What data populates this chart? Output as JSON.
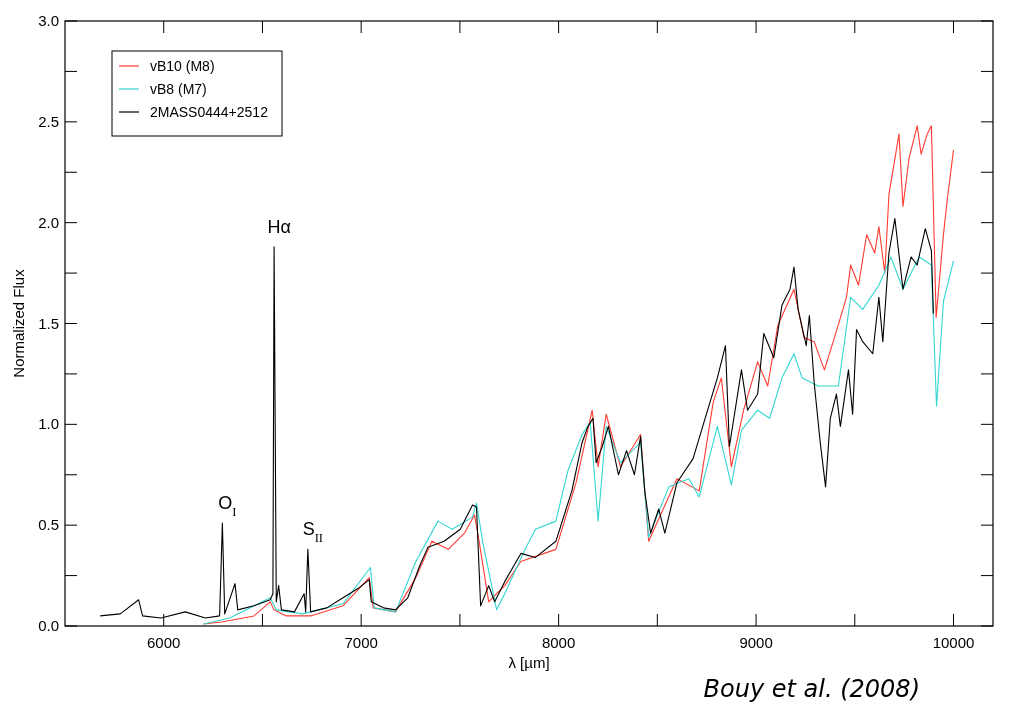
{
  "chart_data": {
    "type": "line",
    "xlabel": "λ [µm]",
    "ylabel": "Normalized Flux",
    "xlim": [
      5500,
      10200
    ],
    "ylim": [
      0,
      3
    ],
    "xticks": [
      {
        "value": 6000,
        "label": "6000"
      },
      {
        "value": 6500,
        "label": null
      },
      {
        "value": 7000,
        "label": "7000"
      },
      {
        "value": 7500,
        "label": null
      },
      {
        "value": 8000,
        "label": "8000"
      },
      {
        "value": 8500,
        "label": null
      },
      {
        "value": 9000,
        "label": "9000"
      },
      {
        "value": 9500,
        "label": null
      },
      {
        "value": 10000,
        "label": "10000"
      }
    ],
    "yticks": [
      {
        "value": 0,
        "label": "0.0"
      },
      {
        "value": 0.25,
        "label": null
      },
      {
        "value": 0.5,
        "label": "0.5"
      },
      {
        "value": 0.75,
        "label": null
      },
      {
        "value": 1,
        "label": "1.0"
      },
      {
        "value": 1.25,
        "label": null
      },
      {
        "value": 1.5,
        "label": "1.5"
      },
      {
        "value": 1.75,
        "label": null
      },
      {
        "value": 2,
        "label": "2.0"
      },
      {
        "value": 2.25,
        "label": null
      },
      {
        "value": 2.5,
        "label": "2.5"
      },
      {
        "value": 2.75,
        "label": null
      },
      {
        "value": 3,
        "label": "3.0"
      }
    ],
    "legend": "top left",
    "grid": false,
    "annotations": [
      {
        "text": "O$_{I}$",
        "x": 6297,
        "y": 0.51
      },
      {
        "text": "Hα",
        "x": 6559,
        "y": 1.88
      },
      {
        "text": "S$_{II}$",
        "x": 6730,
        "y": 0.38
      },
      "Bouy et al. (2008)"
    ],
    "series": [
      {
        "name": "vB10 (M8)",
        "color": "#ff3b30",
        "x": [
          6201,
          6293,
          6457,
          6539,
          6559,
          6621,
          6744,
          6908,
          7041,
          7061,
          7174,
          7277,
          7358,
          7441,
          7523,
          7574,
          7594,
          7646,
          7686,
          7727,
          7809,
          7986,
          8088,
          8170,
          8200,
          8241,
          8313,
          8415,
          8456,
          8599,
          8712,
          8783,
          8824,
          8875,
          8937,
          9008,
          9059,
          9110,
          9192,
          9243,
          9294,
          9346,
          9397,
          9458,
          9479,
          9519,
          9560,
          9601,
          9622,
          9652,
          9673,
          9724,
          9744,
          9775,
          9816,
          9836,
          9867,
          9888,
          9912,
          9949,
          9969,
          10000
        ],
        "values": [
          0.01,
          0.02,
          0.05,
          0.12,
          0.08,
          0.05,
          0.05,
          0.1,
          0.24,
          0.09,
          0.07,
          0.24,
          0.42,
          0.38,
          0.46,
          0.55,
          0.44,
          0.12,
          0.16,
          0.2,
          0.32,
          0.38,
          0.71,
          1.07,
          0.79,
          1.05,
          0.79,
          0.95,
          0.42,
          0.73,
          0.67,
          1.11,
          1.23,
          0.79,
          1.07,
          1.31,
          1.19,
          1.49,
          1.67,
          1.43,
          1.41,
          1.27,
          1.43,
          1.63,
          1.79,
          1.69,
          1.94,
          1.85,
          1.98,
          1.75,
          2.14,
          2.44,
          2.08,
          2.32,
          2.48,
          2.34,
          2.44,
          2.48,
          1.53,
          1.94,
          2.12,
          2.36
        ]
      },
      {
        "name": "vB8 (M7)",
        "color": "#33d6d0",
        "x": [
          6201,
          6334,
          6539,
          6570,
          6703,
          6908,
          7047,
          7066,
          7174,
          7277,
          7389,
          7461,
          7564,
          7584,
          7615,
          7686,
          7727,
          7830,
          7883,
          7986,
          8047,
          8119,
          8160,
          8200,
          8241,
          8313,
          8415,
          8456,
          8558,
          8660,
          8712,
          8804,
          8875,
          8926,
          9008,
          9069,
          9131,
          9192,
          9233,
          9315,
          9417,
          9479,
          9540,
          9622,
          9683,
          9744,
          9826,
          9888,
          9914,
          9949,
          10000
        ],
        "values": [
          0.01,
          0.04,
          0.14,
          0.08,
          0.06,
          0.11,
          0.29,
          0.09,
          0.07,
          0.32,
          0.52,
          0.48,
          0.54,
          0.61,
          0.42,
          0.08,
          0.16,
          0.38,
          0.48,
          0.52,
          0.77,
          0.95,
          1.01,
          0.52,
          0.99,
          0.81,
          0.91,
          0.44,
          0.69,
          0.73,
          0.64,
          0.99,
          0.7,
          0.97,
          1.07,
          1.03,
          1.23,
          1.35,
          1.23,
          1.19,
          1.19,
          1.63,
          1.57,
          1.69,
          1.83,
          1.67,
          1.83,
          1.79,
          1.09,
          1.61,
          1.81
        ]
      },
      {
        "name": "2MASS0444+2512",
        "color": "#000000",
        "x": [
          5678,
          5780,
          5873,
          5893,
          5986,
          6109,
          6211,
          6283,
          6297,
          6309,
          6361,
          6375,
          6457,
          6539,
          6553,
          6559,
          6570,
          6582,
          6596,
          6662,
          6711,
          6719,
          6730,
          6744,
          6826,
          6908,
          6990,
          7041,
          7051,
          7113,
          7174,
          7236,
          7297,
          7338,
          7420,
          7502,
          7564,
          7584,
          7605,
          7646,
          7676,
          7727,
          7809,
          7883,
          7986,
          8067,
          8119,
          8149,
          8174,
          8190,
          8221,
          8252,
          8303,
          8344,
          8384,
          8415,
          8436,
          8466,
          8507,
          8538,
          8599,
          8681,
          8742,
          8804,
          8845,
          8865,
          8926,
          8957,
          9008,
          9039,
          9090,
          9131,
          9172,
          9192,
          9213,
          9254,
          9270,
          9294,
          9325,
          9352,
          9376,
          9407,
          9427,
          9468,
          9489,
          9509,
          9540,
          9591,
          9622,
          9642,
          9673,
          9703,
          9744,
          9785,
          9816,
          9857,
          9888,
          9898
        ],
        "values": [
          0.05,
          0.06,
          0.13,
          0.05,
          0.04,
          0.07,
          0.04,
          0.05,
          0.51,
          0.06,
          0.21,
          0.08,
          0.1,
          0.13,
          0.16,
          1.88,
          0.12,
          0.2,
          0.08,
          0.07,
          0.16,
          0.07,
          0.38,
          0.07,
          0.09,
          0.14,
          0.19,
          0.23,
          0.12,
          0.09,
          0.08,
          0.14,
          0.3,
          0.39,
          0.42,
          0.48,
          0.6,
          0.59,
          0.1,
          0.2,
          0.12,
          0.22,
          0.36,
          0.34,
          0.42,
          0.67,
          0.91,
          0.99,
          1.03,
          0.81,
          0.89,
          0.99,
          0.75,
          0.87,
          0.75,
          0.94,
          0.67,
          0.46,
          0.58,
          0.46,
          0.71,
          0.83,
          1.03,
          1.23,
          1.39,
          0.89,
          1.27,
          1.07,
          1.15,
          1.45,
          1.33,
          1.59,
          1.67,
          1.78,
          1.57,
          1.39,
          1.54,
          1.21,
          0.91,
          0.69,
          1.03,
          1.15,
          0.99,
          1.27,
          1.05,
          1.47,
          1.41,
          1.35,
          1.63,
          1.41,
          1.85,
          2.02,
          1.67,
          1.83,
          1.79,
          1.97,
          1.86,
          1.55
        ]
      }
    ]
  }
}
